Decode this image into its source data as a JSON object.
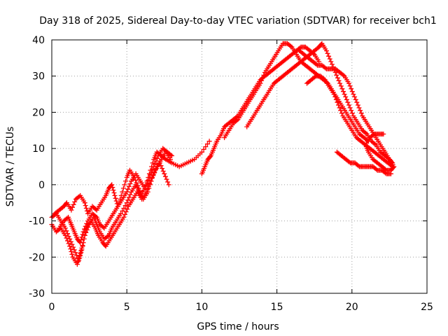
{
  "chart_data": {
    "type": "scatter",
    "title": "Day 318 of 2025, Sidereal Day-to-day VTEC variation (SDTVAR) for receiver bch1",
    "xlabel": "GPS time / hours",
    "ylabel": "SDTVAR / TECUs",
    "xlim": [
      0,
      25
    ],
    "ylim": [
      -30,
      40
    ],
    "xticks": [
      "0",
      "5",
      "10",
      "15",
      "20",
      "25"
    ],
    "yticks": [
      "-30",
      "-20",
      "-10",
      "0",
      "10",
      "20",
      "30",
      "40"
    ],
    "grid": true,
    "marker": "+",
    "color": "#ff0000",
    "series": [
      {
        "name": "s1",
        "points": [
          [
            0.0,
            -9
          ],
          [
            0.3,
            -8
          ],
          [
            0.6,
            -10
          ],
          [
            0.9,
            -12
          ],
          [
            1.2,
            -15
          ],
          [
            1.5,
            -18
          ],
          [
            1.8,
            -21
          ],
          [
            2.0,
            -18
          ],
          [
            2.2,
            -14
          ],
          [
            2.5,
            -11
          ],
          [
            2.8,
            -9
          ],
          [
            3.0,
            -11
          ],
          [
            3.2,
            -13
          ],
          [
            3.5,
            -15
          ],
          [
            3.8,
            -14
          ],
          [
            4.0,
            -12
          ],
          [
            4.3,
            -10
          ],
          [
            4.6,
            -8
          ],
          [
            5.0,
            -5
          ],
          [
            5.3,
            -2
          ],
          [
            5.6,
            0
          ],
          [
            5.9,
            -3
          ],
          [
            6.2,
            -1
          ],
          [
            6.5,
            3
          ],
          [
            6.8,
            7
          ],
          [
            7.0,
            9
          ],
          [
            7.3,
            8
          ],
          [
            7.6,
            7
          ],
          [
            8.0,
            6
          ],
          [
            8.5,
            5
          ],
          [
            9.0,
            6
          ],
          [
            9.5,
            7
          ],
          [
            10.0,
            9
          ],
          [
            10.5,
            12
          ]
        ]
      },
      {
        "name": "s2",
        "points": [
          [
            0.0,
            -11
          ],
          [
            0.3,
            -13
          ],
          [
            0.6,
            -12
          ],
          [
            0.9,
            -14
          ],
          [
            1.2,
            -17
          ],
          [
            1.4,
            -20
          ],
          [
            1.7,
            -22
          ],
          [
            1.9,
            -19
          ],
          [
            2.1,
            -16
          ],
          [
            2.3,
            -12
          ],
          [
            2.6,
            -10
          ],
          [
            2.9,
            -12
          ],
          [
            3.1,
            -14
          ],
          [
            3.4,
            -16
          ],
          [
            3.6,
            -17
          ],
          [
            3.9,
            -15
          ],
          [
            4.2,
            -13
          ],
          [
            4.5,
            -11
          ],
          [
            4.8,
            -9
          ],
          [
            5.1,
            -6
          ],
          [
            5.4,
            -4
          ],
          [
            5.7,
            -2
          ],
          [
            6.0,
            -4
          ],
          [
            6.3,
            -2
          ],
          [
            6.6,
            1
          ],
          [
            6.9,
            4
          ],
          [
            7.2,
            6
          ],
          [
            7.5,
            3
          ],
          [
            7.8,
            0
          ]
        ]
      },
      {
        "name": "s3",
        "points": [
          [
            0.2,
            -8
          ],
          [
            0.5,
            -7
          ],
          [
            0.8,
            -6
          ],
          [
            1.0,
            -5
          ],
          [
            1.3,
            -7
          ],
          [
            1.6,
            -4
          ],
          [
            1.9,
            -3
          ],
          [
            2.2,
            -5
          ],
          [
            2.4,
            -8
          ],
          [
            2.7,
            -6
          ],
          [
            3.0,
            -7
          ],
          [
            3.3,
            -5
          ],
          [
            3.6,
            -3
          ],
          [
            3.8,
            -1
          ],
          [
            4.0,
            0
          ],
          [
            4.2,
            -3
          ],
          [
            4.4,
            -6
          ],
          [
            4.7,
            -2
          ],
          [
            5.0,
            2
          ],
          [
            5.2,
            4
          ],
          [
            5.5,
            2
          ],
          [
            5.8,
            -1
          ],
          [
            6.1,
            -4
          ],
          [
            6.4,
            -2
          ],
          [
            6.7,
            2
          ],
          [
            7.0,
            5
          ],
          [
            7.3,
            7
          ],
          [
            7.6,
            9
          ],
          [
            7.9,
            7
          ]
        ]
      },
      {
        "name": "s4",
        "points": [
          [
            0.5,
            -12
          ],
          [
            0.8,
            -10
          ],
          [
            1.1,
            -9
          ],
          [
            1.3,
            -11
          ],
          [
            1.5,
            -13
          ],
          [
            1.7,
            -15
          ],
          [
            1.9,
            -16
          ],
          [
            2.1,
            -13
          ],
          [
            2.4,
            -10
          ],
          [
            2.7,
            -8
          ],
          [
            3.0,
            -9
          ],
          [
            3.2,
            -11
          ],
          [
            3.5,
            -12
          ],
          [
            3.8,
            -10
          ],
          [
            4.1,
            -8
          ],
          [
            4.4,
            -6
          ],
          [
            4.7,
            -4
          ],
          [
            5.0,
            -2
          ],
          [
            5.3,
            1
          ],
          [
            5.6,
            3
          ],
          [
            5.9,
            1
          ],
          [
            6.2,
            -1
          ],
          [
            6.5,
            2
          ],
          [
            6.8,
            5
          ],
          [
            7.1,
            8
          ],
          [
            7.4,
            10
          ],
          [
            7.7,
            9
          ],
          [
            8.0,
            8
          ]
        ]
      },
      {
        "name": "s5",
        "points": [
          [
            10.0,
            3
          ],
          [
            10.2,
            5
          ],
          [
            10.4,
            7
          ],
          [
            10.6,
            8
          ],
          [
            10.8,
            10
          ],
          [
            11.0,
            12
          ],
          [
            11.3,
            14
          ],
          [
            11.5,
            16
          ],
          [
            11.8,
            17
          ],
          [
            12.1,
            18
          ],
          [
            12.4,
            19
          ],
          [
            12.7,
            21
          ],
          [
            13.0,
            23
          ],
          [
            13.3,
            25
          ],
          [
            13.6,
            27
          ],
          [
            13.9,
            29
          ],
          [
            14.2,
            30
          ],
          [
            14.5,
            31
          ],
          [
            14.8,
            32
          ],
          [
            15.1,
            33
          ],
          [
            15.4,
            34
          ],
          [
            15.7,
            35
          ],
          [
            16.0,
            36
          ],
          [
            16.3,
            37
          ],
          [
            16.6,
            38
          ],
          [
            16.9,
            38
          ],
          [
            17.2,
            37
          ],
          [
            17.5,
            36
          ],
          [
            17.8,
            34
          ]
        ]
      },
      {
        "name": "s6",
        "points": [
          [
            11.5,
            13
          ],
          [
            11.8,
            15
          ],
          [
            12.1,
            17
          ],
          [
            12.4,
            18
          ],
          [
            12.7,
            20
          ],
          [
            13.0,
            22
          ],
          [
            13.3,
            24
          ],
          [
            13.6,
            26
          ],
          [
            13.9,
            28
          ],
          [
            14.2,
            31
          ],
          [
            14.5,
            33
          ],
          [
            14.8,
            35
          ],
          [
            15.1,
            37
          ],
          [
            15.4,
            39
          ],
          [
            15.7,
            39
          ],
          [
            16.0,
            38
          ],
          [
            16.3,
            36
          ],
          [
            16.6,
            34
          ],
          [
            16.9,
            33
          ],
          [
            17.2,
            32
          ],
          [
            17.5,
            31
          ],
          [
            17.8,
            30
          ],
          [
            18.1,
            29
          ],
          [
            18.4,
            28
          ],
          [
            18.7,
            26
          ],
          [
            19.0,
            24
          ],
          [
            19.3,
            22
          ],
          [
            19.6,
            20
          ],
          [
            19.9,
            18
          ],
          [
            20.2,
            16
          ],
          [
            20.5,
            14
          ],
          [
            20.8,
            13
          ],
          [
            21.1,
            12
          ]
        ]
      },
      {
        "name": "s7",
        "points": [
          [
            13.0,
            16
          ],
          [
            13.3,
            18
          ],
          [
            13.6,
            20
          ],
          [
            13.9,
            22
          ],
          [
            14.2,
            24
          ],
          [
            14.5,
            26
          ],
          [
            14.8,
            28
          ],
          [
            15.1,
            29
          ],
          [
            15.4,
            30
          ],
          [
            15.7,
            31
          ],
          [
            16.0,
            32
          ],
          [
            16.3,
            33
          ],
          [
            16.6,
            34
          ],
          [
            16.9,
            35
          ],
          [
            17.2,
            36
          ],
          [
            17.5,
            37
          ],
          [
            17.8,
            38
          ],
          [
            18.0,
            39
          ],
          [
            18.3,
            37
          ],
          [
            18.6,
            34
          ],
          [
            18.9,
            31
          ],
          [
            19.2,
            28
          ],
          [
            19.5,
            25
          ],
          [
            19.8,
            22
          ],
          [
            20.1,
            19
          ],
          [
            20.4,
            17
          ],
          [
            20.7,
            15
          ],
          [
            21.0,
            14
          ],
          [
            21.3,
            12
          ],
          [
            21.6,
            11
          ],
          [
            21.9,
            9
          ],
          [
            22.2,
            8
          ],
          [
            22.5,
            7
          ],
          [
            22.7,
            6
          ]
        ]
      },
      {
        "name": "s8",
        "points": [
          [
            16.5,
            37
          ],
          [
            16.8,
            36
          ],
          [
            17.1,
            35
          ],
          [
            17.4,
            34
          ],
          [
            17.7,
            33
          ],
          [
            18.0,
            33
          ],
          [
            18.3,
            32
          ],
          [
            18.6,
            32
          ],
          [
            18.9,
            32
          ],
          [
            19.2,
            31
          ],
          [
            19.5,
            30
          ],
          [
            19.8,
            28
          ],
          [
            20.1,
            25
          ],
          [
            20.4,
            22
          ],
          [
            20.7,
            19
          ],
          [
            21.0,
            17
          ],
          [
            21.3,
            15
          ],
          [
            21.6,
            13
          ],
          [
            21.9,
            11
          ],
          [
            22.2,
            9
          ],
          [
            22.5,
            7
          ],
          [
            22.8,
            5
          ],
          [
            22.6,
            4
          ],
          [
            22.3,
            4
          ],
          [
            22.0,
            5
          ],
          [
            21.7,
            6
          ],
          [
            21.4,
            7
          ],
          [
            21.1,
            9
          ],
          [
            20.9,
            11
          ],
          [
            21.2,
            13
          ],
          [
            21.5,
            14
          ],
          [
            21.8,
            14
          ],
          [
            22.1,
            14
          ]
        ]
      },
      {
        "name": "s9",
        "points": [
          [
            17.0,
            28
          ],
          [
            17.3,
            29
          ],
          [
            17.6,
            30
          ],
          [
            17.9,
            30
          ],
          [
            18.2,
            29
          ],
          [
            18.5,
            27
          ],
          [
            18.8,
            25
          ],
          [
            19.1,
            22
          ],
          [
            19.4,
            19
          ],
          [
            19.7,
            17
          ],
          [
            20.0,
            15
          ],
          [
            20.3,
            13
          ],
          [
            20.6,
            12
          ],
          [
            20.9,
            11
          ],
          [
            21.2,
            10
          ],
          [
            21.5,
            9
          ],
          [
            21.8,
            8
          ],
          [
            22.1,
            7
          ],
          [
            22.4,
            6
          ],
          [
            22.7,
            5
          ]
        ]
      },
      {
        "name": "s10",
        "points": [
          [
            19.0,
            9
          ],
          [
            19.3,
            8
          ],
          [
            19.6,
            7
          ],
          [
            19.9,
            6
          ],
          [
            20.2,
            6
          ],
          [
            20.5,
            5
          ],
          [
            20.8,
            5
          ],
          [
            21.1,
            5
          ],
          [
            21.4,
            5
          ],
          [
            21.7,
            4
          ],
          [
            22.0,
            4
          ],
          [
            22.3,
            3
          ],
          [
            22.6,
            3
          ]
        ]
      }
    ]
  }
}
